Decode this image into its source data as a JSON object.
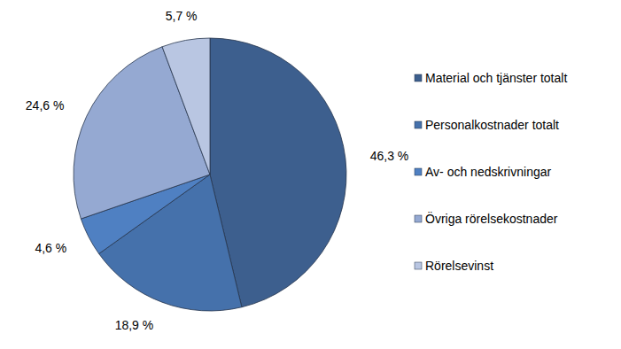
{
  "chart_data": {
    "type": "pie",
    "categories": [
      "Material och tjänster totalt",
      "Personalkostnader totalt",
      "Av- och nedskrivningar",
      "Övriga rörelsekostnader",
      "Rörelsevinst"
    ],
    "values": [
      46.3,
      18.9,
      4.6,
      24.6,
      5.7
    ],
    "value_labels": [
      "46,3 %",
      "18,9 %",
      "4,6 %",
      "24,6 %",
      "5,7 %"
    ],
    "colors": [
      "#3d5f8e",
      "#4571ab",
      "#4f80c2",
      "#95a9d2",
      "#b9c6e2"
    ],
    "data_labels": true,
    "legend": "right"
  }
}
